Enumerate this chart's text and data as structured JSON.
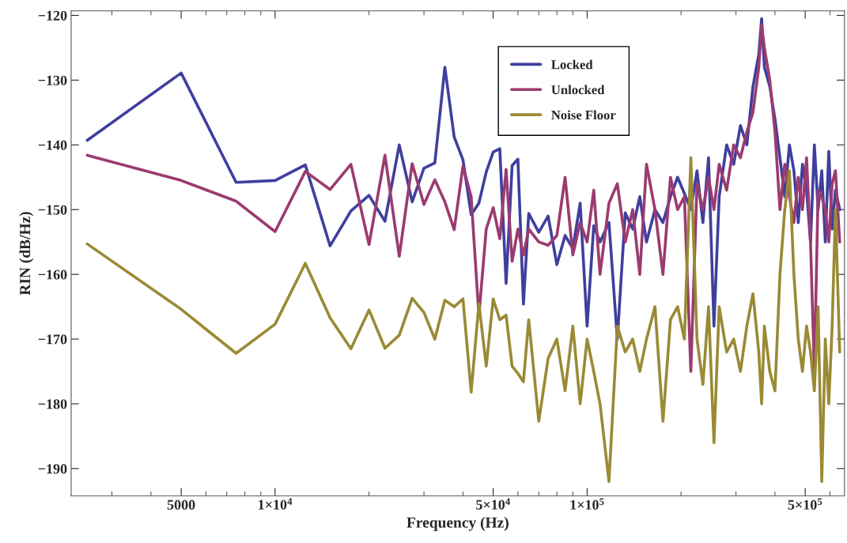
{
  "chart_data": {
    "type": "line",
    "xlabel": "Frequency (Hz)",
    "ylabel": "RIN (dB/Hz)",
    "log": "x",
    "grid": false,
    "legend": "top right",
    "marker": "none",
    "line_style": "solid",
    "x": [
      2500,
      5000,
      7500,
      10000,
      12500,
      15000,
      17500,
      20000,
      22500,
      25000,
      27500,
      30000,
      32500,
      35000,
      37500,
      40000,
      42500,
      45000,
      47500,
      50000,
      52500,
      55000,
      57500,
      60000,
      62500,
      65000,
      70000,
      75000,
      80000,
      85000,
      90000,
      95000,
      100000,
      105000,
      110000,
      117500,
      125000,
      132500,
      140000,
      147500,
      155000,
      165000,
      175000,
      185000,
      195000,
      205000,
      215000,
      225000,
      235000,
      245000,
      255000,
      265000,
      280000,
      295000,
      310000,
      325000,
      340000,
      355000,
      362500,
      370000,
      385000,
      400000,
      415000,
      430000,
      445000,
      460000,
      475000,
      490000,
      505000,
      520000,
      535000,
      550000,
      565000,
      580000,
      595000,
      610000,
      625000,
      645000
    ],
    "series": [
      {
        "name": "Locked",
        "color": "#3f3f9f",
        "values": [
          -139.3,
          -128.9,
          -145.8,
          -145.5,
          -143.1,
          -155.6,
          -150.2,
          -147.8,
          -151.8,
          -140.0,
          -148.8,
          -143.6,
          -142.8,
          -128.0,
          -138.8,
          -142.3,
          -150.8,
          -149.0,
          -144.2,
          -141.1,
          -140.6,
          -161.4,
          -143.2,
          -142.2,
          -164.6,
          -150.6,
          -153.5,
          -151.0,
          -158.5,
          -154.0,
          -156.0,
          -149.0,
          -168.0,
          -152.5,
          -155.0,
          -152.0,
          -170.0,
          -150.5,
          -153.0,
          -148.0,
          -155.0,
          -150.0,
          -152.0,
          -148.0,
          -145.0,
          -147.5,
          -150.0,
          -144.0,
          -152.0,
          -142.0,
          -168.0,
          -148.0,
          -140.0,
          -143.0,
          -137.0,
          -140.0,
          -131.0,
          -126.0,
          -120.5,
          -128.0,
          -131.0,
          -136.0,
          -142.0,
          -148.0,
          -140.0,
          -144.0,
          -152.0,
          -143.0,
          -147.0,
          -155.0,
          -140.0,
          -150.0,
          -144.0,
          -155.0,
          -141.0,
          -153.0,
          -147.0,
          -150.0
        ]
      },
      {
        "name": "Unlocked",
        "color": "#9b3b6f",
        "values": [
          -141.6,
          -145.5,
          -148.7,
          -153.4,
          -144.1,
          -146.9,
          -143.0,
          -155.4,
          -141.6,
          -157.2,
          -142.9,
          -149.2,
          -145.4,
          -148.8,
          -153.1,
          -143.3,
          -148.0,
          -166.4,
          -153.0,
          -149.7,
          -154.5,
          -143.8,
          -158.0,
          -153.0,
          -157.0,
          -153.0,
          -155.0,
          -155.5,
          -154.0,
          -145.0,
          -157.0,
          -152.0,
          -155.0,
          -147.0,
          -160.0,
          -149.0,
          -146.0,
          -155.0,
          -150.0,
          -160.0,
          -143.0,
          -150.0,
          -160.0,
          -145.0,
          -150.0,
          -148.0,
          -175.0,
          -146.0,
          -150.0,
          -145.0,
          -150.0,
          -143.0,
          -147.0,
          -140.0,
          -142.0,
          -138.0,
          -135.0,
          -128.0,
          -121.5,
          -125.0,
          -130.0,
          -138.0,
          -150.0,
          -143.0,
          -148.0,
          -152.0,
          -145.0,
          -150.0,
          -142.0,
          -155.0,
          -175.0,
          -147.0,
          -148.0,
          -150.0,
          -155.0,
          -146.0,
          -144.0,
          -155.0
        ]
      },
      {
        "name": "Noise Floor",
        "color": "#9a8a35",
        "values": [
          -155.3,
          -165.4,
          -172.2,
          -167.7,
          -158.3,
          -166.7,
          -171.5,
          -165.5,
          -171.4,
          -169.4,
          -163.7,
          -165.9,
          -170.0,
          -164.0,
          -165.0,
          -163.8,
          -178.2,
          -164.5,
          -174.2,
          -163.8,
          -167.0,
          -166.3,
          -174.2,
          -175.3,
          -176.6,
          -167.0,
          -182.7,
          -173.0,
          -170.0,
          -178.0,
          -168.0,
          -180.0,
          -170.0,
          -175.0,
          -180.0,
          -192.0,
          -168.0,
          -172.0,
          -170.0,
          -175.0,
          -170.0,
          -165.0,
          -182.7,
          -167.0,
          -165.0,
          -170.0,
          -142.0,
          -170.0,
          -177.0,
          -165.0,
          -186.0,
          -165.0,
          -172.0,
          -170.0,
          -175.0,
          -168.0,
          -163.0,
          -172.0,
          -180.0,
          -168.0,
          -175.0,
          -178.0,
          -160.0,
          -150.0,
          -144.0,
          -160.0,
          -170.0,
          -175.0,
          -168.0,
          -172.0,
          -178.0,
          -165.0,
          -192.0,
          -170.0,
          -180.0,
          -168.0,
          -150.0,
          -172.0
        ]
      }
    ],
    "xlim": [
      2220,
      668000
    ],
    "ylim": [
      -194.2,
      -119.3
    ],
    "xticks": [
      {
        "value": 3000,
        "label": null
      },
      {
        "value": 4000,
        "label": null
      },
      5000,
      {
        "value": 6000,
        "label": null
      },
      {
        "value": 7000,
        "label": null
      },
      {
        "value": 8000,
        "label": null
      },
      {
        "value": 9000,
        "label": null
      },
      {
        "value": 10000,
        "label": "1×10$^{4}$"
      },
      {
        "value": 20000,
        "label": null
      },
      {
        "value": 30000,
        "label": null
      },
      {
        "value": 40000,
        "label": null
      },
      {
        "value": 50000,
        "label": "5×10$^{4}$"
      },
      {
        "value": 60000,
        "label": null
      },
      {
        "value": 70000,
        "label": null
      },
      {
        "value": 80000,
        "label": null
      },
      {
        "value": 90000,
        "label": null
      },
      {
        "value": 100000,
        "label": "1×10$^{5}$"
      },
      {
        "value": 200000,
        "label": null
      },
      {
        "value": 300000,
        "label": null
      },
      {
        "value": 400000,
        "label": null
      },
      {
        "value": 500000,
        "label": "5×10$^{5}$"
      },
      {
        "value": 600000,
        "label": null
      }
    ],
    "yticks": [
      -190,
      -180,
      -170,
      -160,
      -150,
      -140,
      -130,
      -120
    ]
  }
}
